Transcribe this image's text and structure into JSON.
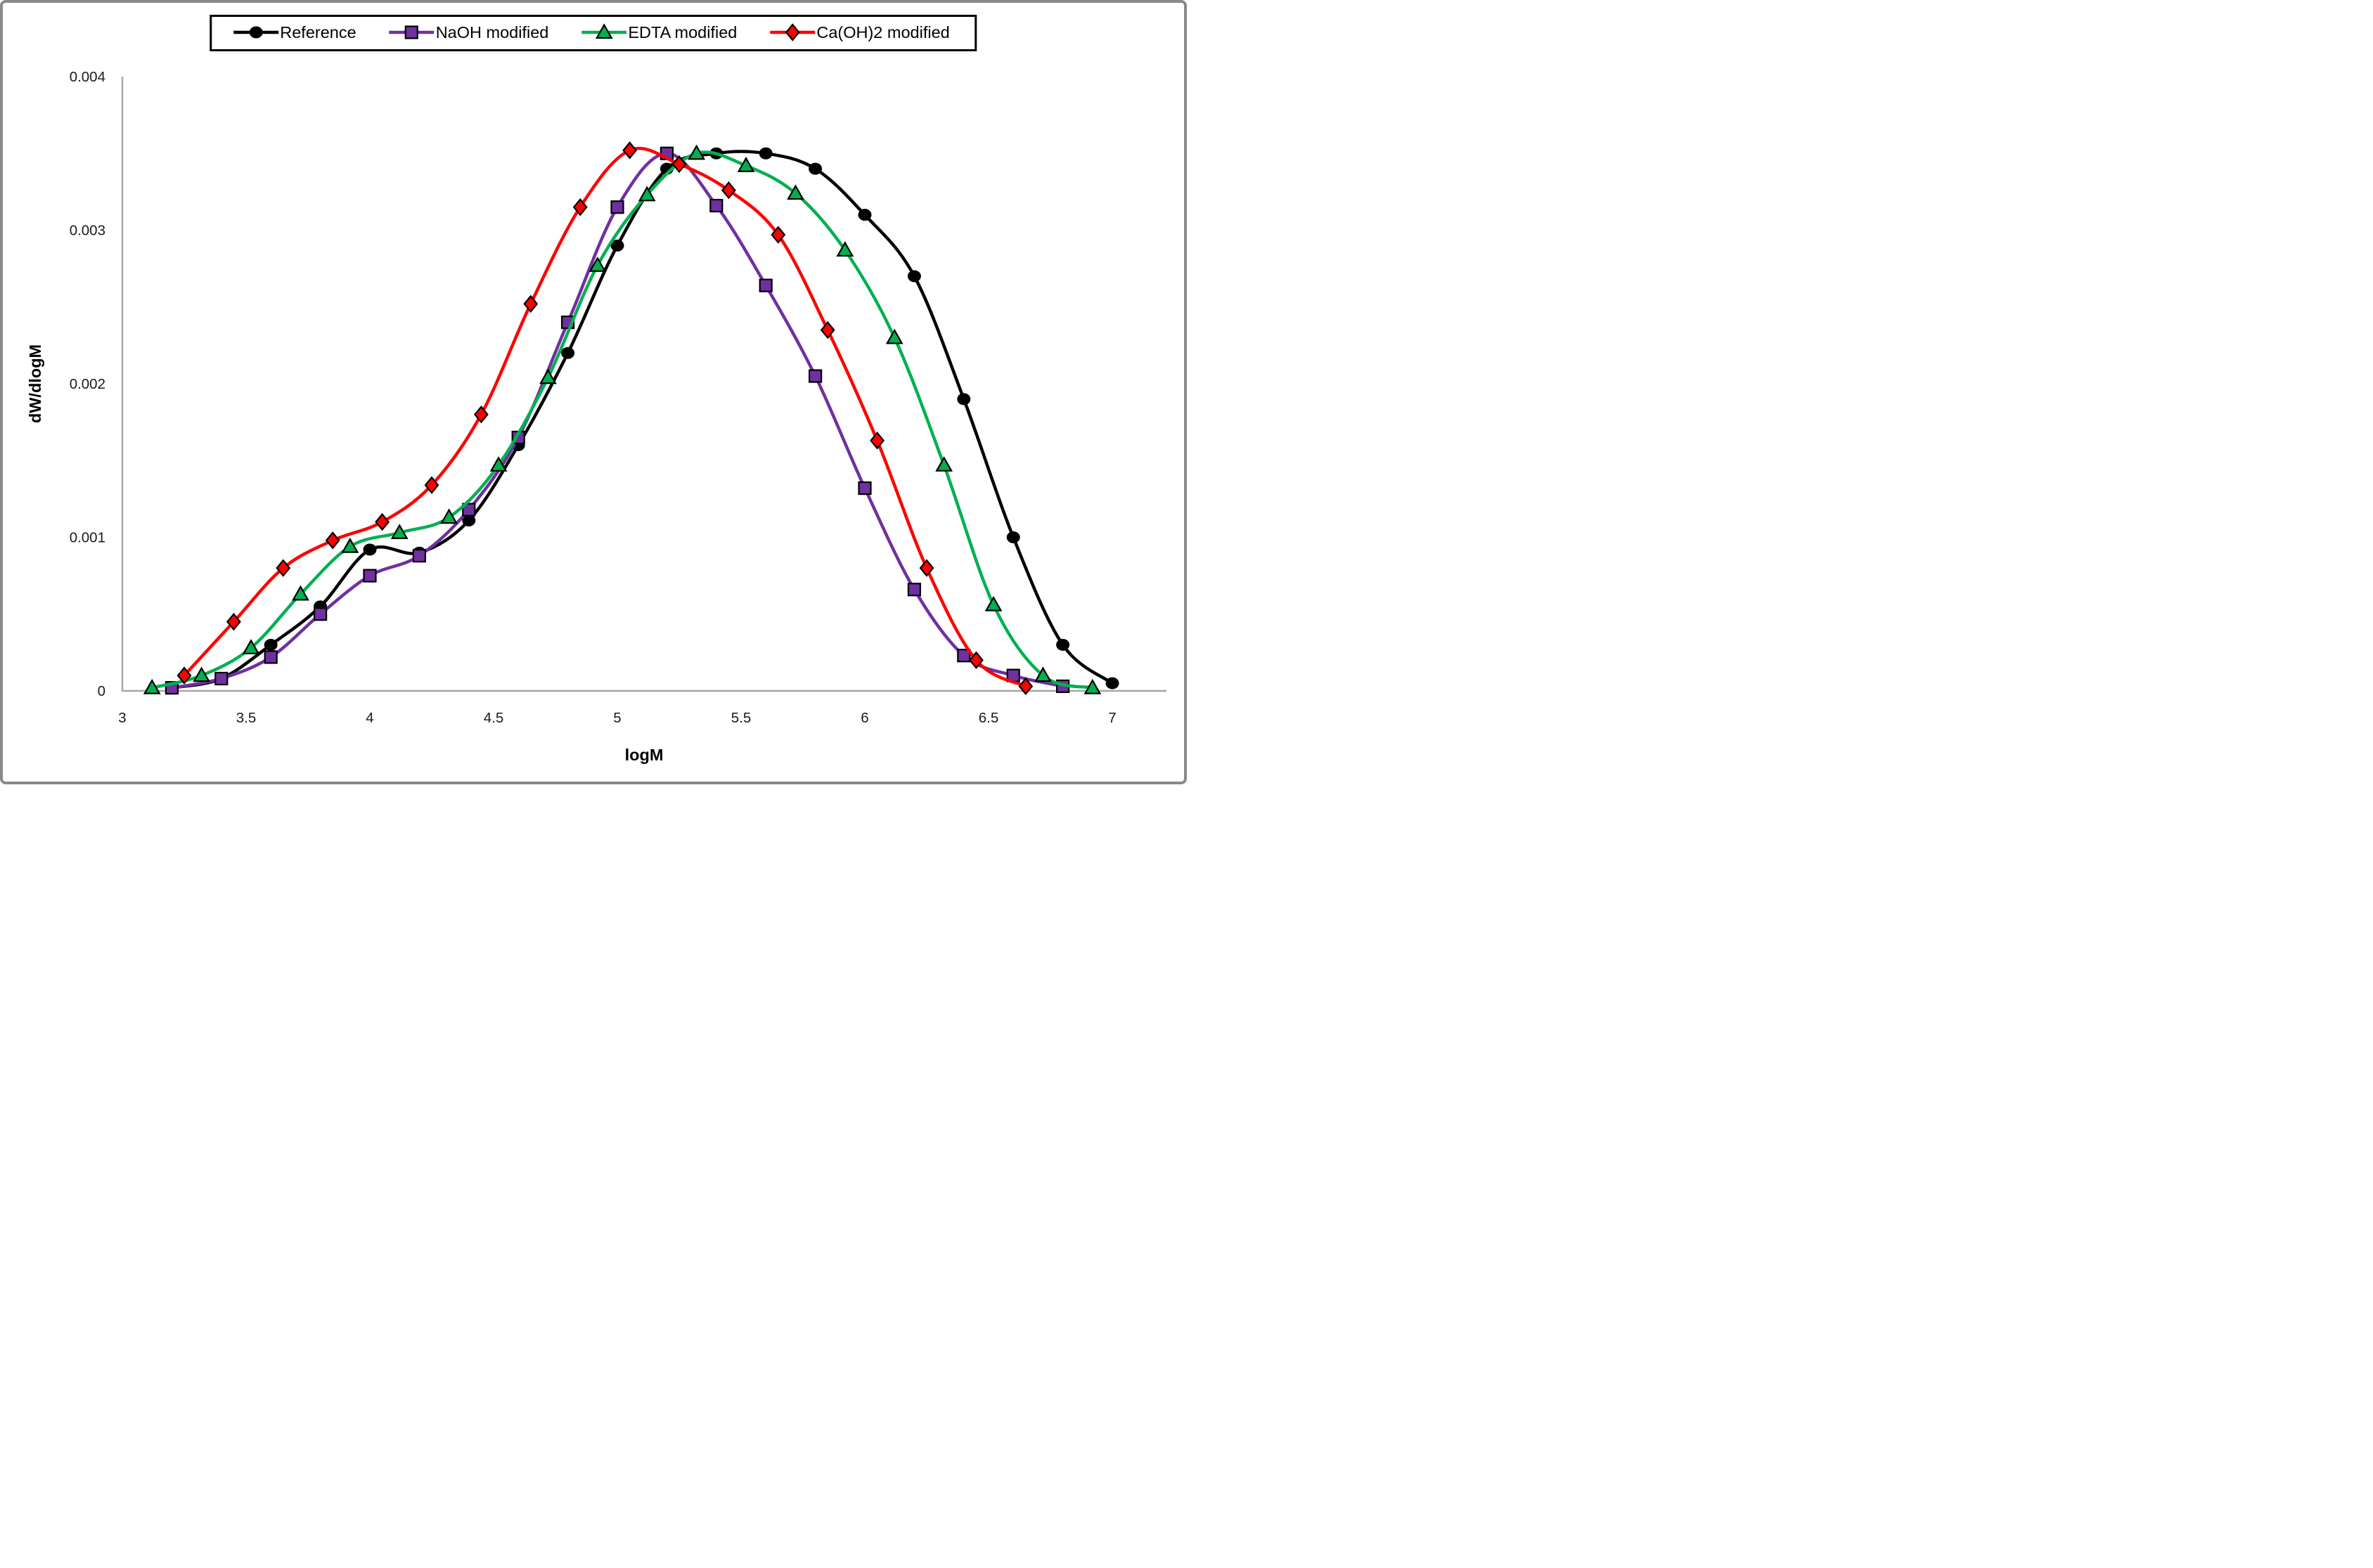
{
  "figure": {
    "background": "#ffffff",
    "outer_border_color": "#898989",
    "axis_color": "#a6a6a6",
    "text_color": "#1a1a1a",
    "legend_border_color": "#000000"
  },
  "chart_data": {
    "type": "line",
    "title": "",
    "xlabel": "logM",
    "ylabel": "dW/dlogM",
    "xlim": [
      3,
      7.22
    ],
    "ylim": [
      0,
      0.004
    ],
    "grid": false,
    "legend_position": "top-center",
    "x_ticks": [
      3,
      3.5,
      4,
      4.5,
      5,
      5.5,
      6,
      6.5,
      7
    ],
    "x_tick_labels": [
      "3",
      "3.5",
      "4",
      "4.5",
      "5",
      "5.5",
      "6",
      "6.5",
      "7"
    ],
    "y_ticks": [
      0,
      0.001,
      0.002,
      0.003,
      0.004
    ],
    "y_tick_labels": [
      "0",
      "0.001",
      "0.002",
      "0.003",
      "0.004"
    ],
    "series": [
      {
        "name": "Reference",
        "color": "#000000",
        "marker": "circle",
        "x": [
          3.2,
          3.4,
          3.6,
          3.8,
          4.0,
          4.2,
          4.4,
          4.6,
          4.8,
          5.0,
          5.2,
          5.4,
          5.6,
          5.8,
          6.0,
          6.2,
          6.4,
          6.6,
          6.8,
          7.0
        ],
        "y": [
          2e-05,
          8e-05,
          0.0003,
          0.00055,
          0.00092,
          0.0009,
          0.00111,
          0.0016,
          0.0022,
          0.0029,
          0.0034,
          0.0035,
          0.0035,
          0.0034,
          0.0031,
          0.0027,
          0.0019,
          0.001,
          0.0003,
          5e-05
        ]
      },
      {
        "name": "NaOH modified",
        "color": "#7030a0",
        "marker": "square",
        "x": [
          3.2,
          3.4,
          3.6,
          3.8,
          4.0,
          4.2,
          4.4,
          4.6,
          4.8,
          5.0,
          5.2,
          5.4,
          5.6,
          5.8,
          6.0,
          6.2,
          6.4,
          6.6,
          6.8
        ],
        "y": [
          2e-05,
          8e-05,
          0.00022,
          0.0005,
          0.00075,
          0.00088,
          0.00118,
          0.00165,
          0.0024,
          0.00315,
          0.0035,
          0.00316,
          0.00264,
          0.00205,
          0.00132,
          0.00066,
          0.00023,
          0.0001,
          3e-05
        ]
      },
      {
        "name": "EDTA modified",
        "color": "#00b050",
        "marker": "triangle",
        "x": [
          3.12,
          3.32,
          3.52,
          3.72,
          3.92,
          4.12,
          4.32,
          4.52,
          4.72,
          4.92,
          5.12,
          5.32,
          5.52,
          5.72,
          5.92,
          6.12,
          6.32,
          6.52,
          6.72,
          6.92
        ],
        "y": [
          2e-05,
          0.0001,
          0.00028,
          0.00063,
          0.00094,
          0.00103,
          0.00113,
          0.00147,
          0.00204,
          0.00277,
          0.00323,
          0.0035,
          0.00342,
          0.00324,
          0.00287,
          0.0023,
          0.00147,
          0.00056,
          0.0001,
          2e-05
        ]
      },
      {
        "name": "Ca(OH)2 modified",
        "color": "#ff0000",
        "marker": "diamond",
        "x": [
          3.25,
          3.45,
          3.65,
          3.85,
          4.05,
          4.25,
          4.45,
          4.65,
          4.85,
          5.05,
          5.25,
          5.45,
          5.65,
          5.85,
          6.05,
          6.25,
          6.45,
          6.65
        ],
        "y": [
          0.0001,
          0.00045,
          0.0008,
          0.00098,
          0.0011,
          0.00134,
          0.0018,
          0.00252,
          0.00315,
          0.00352,
          0.00343,
          0.00326,
          0.00297,
          0.00235,
          0.00163,
          0.0008,
          0.0002,
          3e-05
        ]
      }
    ]
  }
}
